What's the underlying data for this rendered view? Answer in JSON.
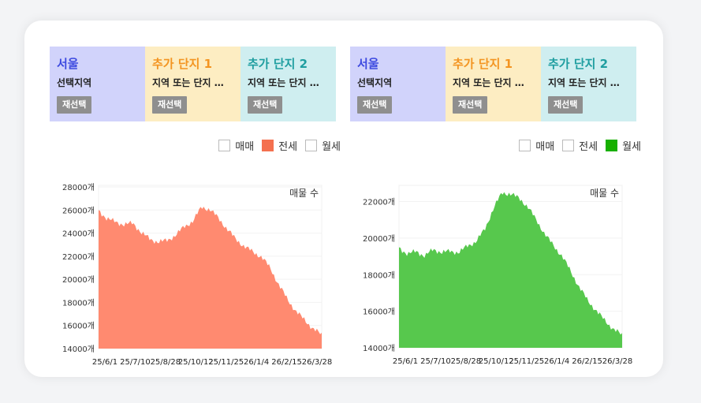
{
  "panels": [
    {
      "regions": [
        {
          "name": "서울",
          "sub": "선택지역",
          "button": "재선택"
        },
        {
          "name": "추가 단지 1",
          "sub": "지역 또는 단지 …",
          "button": "재선택"
        },
        {
          "name": "추가 단지 2",
          "sub": "지역 또는 단지 …",
          "button": "재선택"
        }
      ],
      "legend": [
        {
          "label": "매매",
          "checked": false,
          "color": "#ffffff"
        },
        {
          "label": "전세",
          "checked": true,
          "color": "#f4704f"
        },
        {
          "label": "월세",
          "checked": false,
          "color": "#ffffff"
        }
      ]
    },
    {
      "regions": [
        {
          "name": "서울",
          "sub": "선택지역",
          "button": "재선택"
        },
        {
          "name": "추가 단지 1",
          "sub": "지역 또는 단지 …",
          "button": "재선택"
        },
        {
          "name": "추가 단지 2",
          "sub": "지역 또는 단지 …",
          "button": "재선택"
        }
      ],
      "legend": [
        {
          "label": "매매",
          "checked": false,
          "color": "#ffffff"
        },
        {
          "label": "전세",
          "checked": false,
          "color": "#ffffff"
        },
        {
          "label": "월세",
          "checked": true,
          "color": "#17b000"
        }
      ]
    }
  ],
  "chart_data": [
    {
      "type": "area",
      "series_label": "전세",
      "annotation": "매물 수",
      "color": "#ff8a70",
      "ylim": [
        14000,
        28000
      ],
      "yticks": [
        "14000개",
        "16000개",
        "18000개",
        "20000개",
        "22000개",
        "24000개",
        "26000개",
        "28000개"
      ],
      "ytick_values": [
        14000,
        16000,
        18000,
        20000,
        22000,
        24000,
        26000,
        28000
      ],
      "xticks": [
        "25/6/1",
        "25/7/10",
        "25/8/28",
        "25/10/12",
        "25/11/25",
        "26/1/4",
        "26/2/15",
        "26/3/28"
      ],
      "x": [
        "25/6/1",
        "25/6/15",
        "25/7/1",
        "25/7/10",
        "25/7/25",
        "25/8/10",
        "25/8/28",
        "25/9/10",
        "25/9/25",
        "25/10/12",
        "25/10/25",
        "25/11/5",
        "25/11/15",
        "25/11/25",
        "25/12/5",
        "25/12/15",
        "25/12/25",
        "26/1/4",
        "26/1/15",
        "26/1/25",
        "26/2/5",
        "26/2/15",
        "26/2/25",
        "26/3/5",
        "26/3/15",
        "26/3/28",
        "26/4/5"
      ],
      "values": [
        26000,
        25200,
        25000,
        24700,
        24900,
        24000,
        23500,
        23200,
        23400,
        23800,
        24600,
        25000,
        26300,
        26000,
        25300,
        24300,
        23500,
        22800,
        22400,
        21900,
        21000,
        19500,
        18300,
        17200,
        16500,
        15700,
        15200
      ]
    },
    {
      "type": "area",
      "series_label": "월세",
      "annotation": "매물 수",
      "color": "#57c84d",
      "ylim": [
        14000,
        22800
      ],
      "yticks": [
        "14000개",
        "16000개",
        "18000개",
        "20000개",
        "22000개"
      ],
      "ytick_values": [
        14000,
        16000,
        18000,
        20000,
        22000
      ],
      "xticks": [
        "25/6/1",
        "25/7/10",
        "25/8/28",
        "25/10/12",
        "25/11/25",
        "26/1/4",
        "26/2/15",
        "26/3/28"
      ],
      "x": [
        "25/6/1",
        "25/6/15",
        "25/7/1",
        "25/7/10",
        "25/7/25",
        "25/8/10",
        "25/8/28",
        "25/9/10",
        "25/9/25",
        "25/10/12",
        "25/10/25",
        "25/11/5",
        "25/11/15",
        "25/11/25",
        "25/12/5",
        "25/12/15",
        "25/12/25",
        "26/1/4",
        "26/1/15",
        "26/1/25",
        "26/2/5",
        "26/2/15",
        "26/2/25",
        "26/3/5",
        "26/3/15",
        "26/3/28",
        "26/4/5"
      ],
      "values": [
        19500,
        19100,
        19300,
        19000,
        19400,
        19200,
        19300,
        19200,
        19600,
        19800,
        20500,
        21600,
        22500,
        22400,
        22200,
        21700,
        21000,
        20200,
        19600,
        19000,
        18200,
        17300,
        16600,
        16000,
        15500,
        15000,
        14700
      ]
    }
  ]
}
